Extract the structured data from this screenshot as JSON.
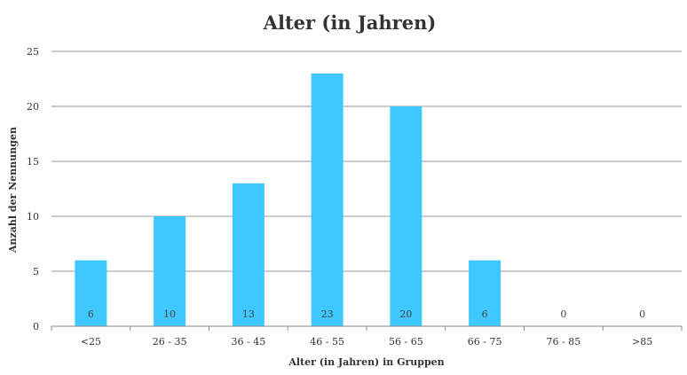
{
  "chart_data": {
    "type": "bar",
    "title": "Alter (in Jahren)",
    "xlabel": "Alter (in Jahren) in Gruppen",
    "ylabel": "Anzahl der Nennungen",
    "categories": [
      "<25",
      "26 - 35",
      "36 - 45",
      "46 - 55",
      "56 - 65",
      "66 - 75",
      "76 - 85",
      ">85"
    ],
    "values": [
      6,
      10,
      13,
      23,
      20,
      6,
      0,
      0
    ],
    "data_labels": [
      "6",
      "10",
      "13",
      "23",
      "20",
      "6",
      "0",
      "0"
    ],
    "ylim": [
      0,
      25
    ],
    "yticks": [
      0,
      5,
      10,
      15,
      20,
      25
    ],
    "grid": true,
    "legend": "none",
    "colors": {
      "bar": "#3FC8FF",
      "grid": "#9A9A9A",
      "axis": "#888888"
    }
  }
}
